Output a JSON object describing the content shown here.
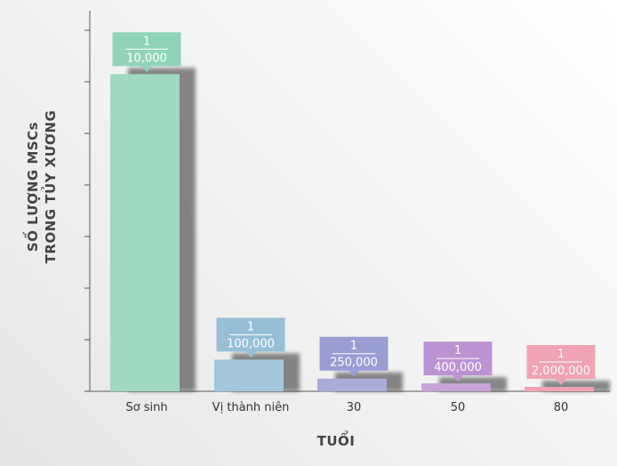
{
  "chart_data": {
    "type": "bar",
    "title": "",
    "xlabel": "TUỔI",
    "ylabel_lines": [
      "SỐ LƯỢNG MSCs",
      "TRONG TỦY XƯƠNG"
    ],
    "categories": [
      "Sơ sinh",
      "Vị thành niên",
      "30",
      "50",
      "80"
    ],
    "values": [
      0.0001,
      1e-05,
      4e-06,
      2.5e-06,
      5e-07
    ],
    "labels": [
      {
        "numerator": "1",
        "denominator": "10,000"
      },
      {
        "numerator": "1",
        "denominator": "100,000"
      },
      {
        "numerator": "1",
        "denominator": "250,000"
      },
      {
        "numerator": "1",
        "denominator": "400,000"
      },
      {
        "numerator": "1",
        "denominator": "2,000,000"
      }
    ],
    "colors": [
      "#9fd9c1",
      "#a4c6da",
      "#a9abd9",
      "#c6a4d8",
      "#f1a3b4"
    ],
    "label_colors": [
      "#8fd4b8",
      "#96bfd6",
      "#9a9dd4",
      "#bb93d3",
      "#f0a3b3"
    ],
    "ylim": [
      0,
      0.0001127
    ],
    "y_ticks": 8,
    "grid": false,
    "legend": "none"
  }
}
